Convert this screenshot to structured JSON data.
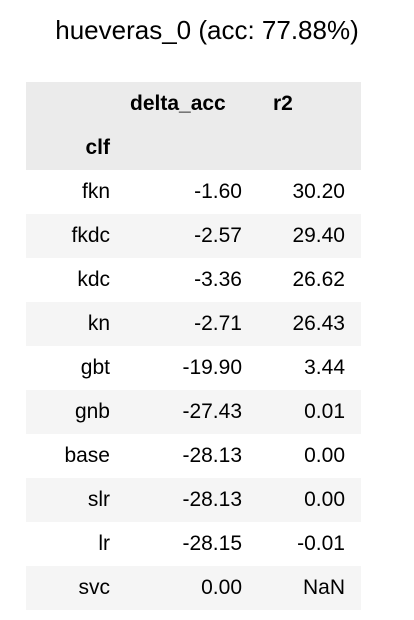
{
  "title": "hueveras_0 (acc: 77.88%)",
  "table": {
    "columns": [
      "",
      "delta_acc",
      "r2"
    ],
    "index_name": "clf",
    "rows": [
      {
        "clf": "fkn",
        "delta_acc": "-1.60",
        "r2": "30.20"
      },
      {
        "clf": "fkdc",
        "delta_acc": "-2.57",
        "r2": "29.40"
      },
      {
        "clf": "kdc",
        "delta_acc": "-3.36",
        "r2": "26.62"
      },
      {
        "clf": "kn",
        "delta_acc": "-2.71",
        "r2": "26.43"
      },
      {
        "clf": "gbt",
        "delta_acc": "-19.90",
        "r2": "3.44"
      },
      {
        "clf": "gnb",
        "delta_acc": "-27.43",
        "r2": "0.01"
      },
      {
        "clf": "base",
        "delta_acc": "-28.13",
        "r2": "0.00"
      },
      {
        "clf": "slr",
        "delta_acc": "-28.13",
        "r2": "0.00"
      },
      {
        "clf": "lr",
        "delta_acc": "-28.15",
        "r2": "-0.01"
      },
      {
        "clf": "svc",
        "delta_acc": "0.00",
        "r2": "NaN"
      }
    ]
  },
  "colors": {
    "header_bg": "#ebebeb",
    "stripe_bg": "#f5f5f5",
    "text": "#000000"
  }
}
